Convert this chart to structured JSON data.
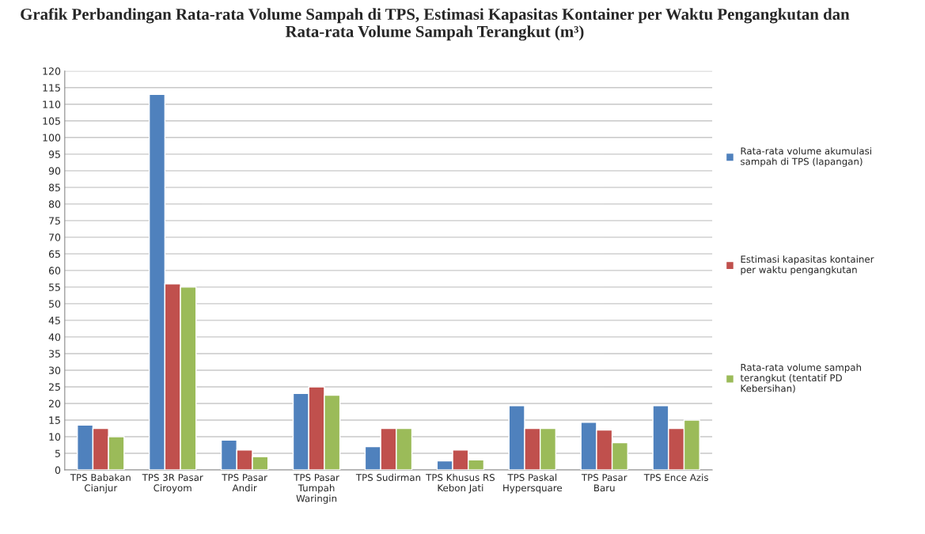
{
  "chart_data": {
    "type": "bar",
    "title": "Grafik Perbandingan Rata-rata Volume Sampah di TPS, Estimasi Kapasitas Kontainer per Waktu Pengangkutan dan Rata-rata Volume Sampah Terangkut (m³)",
    "categories": [
      "TPS Babakan Cianjur",
      "TPS 3R Pasar Ciroyom",
      "TPS Pasar Andir",
      "TPS Pasar Tumpah Waringin",
      "TPS Sudirman",
      "TPS Khusus RS Kebon Jati",
      "TPS Paskal Hypersquare",
      "TPS Pasar Baru",
      "TPS Ence Azis"
    ],
    "series": [
      {
        "name": "Rata-rata volume akumulasi sampah di TPS (lapangan)",
        "color": "#4f81bd",
        "values": [
          13.5,
          113,
          9,
          23,
          7,
          2.7,
          19.3,
          14.3,
          19.3
        ]
      },
      {
        "name": "Estimasi kapasitas kontainer per waktu pengangkutan",
        "color": "#c0504d",
        "values": [
          12.5,
          56,
          6,
          25,
          12.5,
          6,
          12.5,
          12,
          12.5
        ]
      },
      {
        "name": "Rata-rata volume sampah terangkut (tentatif PD Kebersihan)",
        "color": "#9bbb59",
        "values": [
          10,
          55,
          4,
          22.5,
          12.5,
          3,
          12.5,
          8.2,
          15
        ]
      }
    ],
    "ylim": [
      0,
      120
    ],
    "yticks": [
      0,
      5,
      10,
      15,
      20,
      25,
      30,
      35,
      40,
      45,
      50,
      55,
      60,
      65,
      70,
      75,
      80,
      85,
      90,
      95,
      100,
      105,
      110,
      115,
      120
    ],
    "grid": "y",
    "legend": "right"
  }
}
